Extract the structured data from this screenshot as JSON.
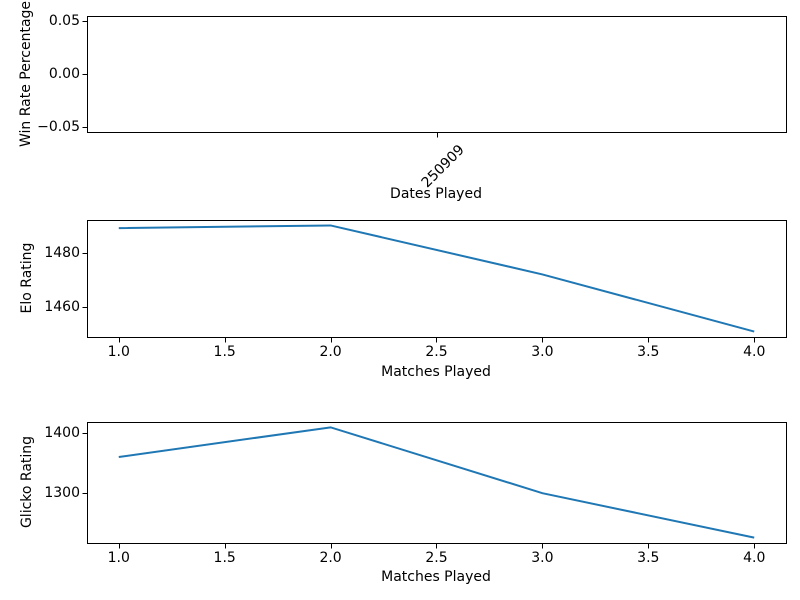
{
  "figure": {
    "background": "#ffffff",
    "axes_color": "#000000",
    "text_color": "#000000"
  },
  "chart_data": [
    {
      "type": "line",
      "title": "",
      "xlabel": "Dates Played",
      "ylabel": "Win Rate Percentage",
      "xlim": [
        -0.5,
        0.5
      ],
      "ylim": [
        -0.055,
        0.055
      ],
      "grid": false,
      "legend": "none",
      "x_ticks": [
        {
          "pos": 0,
          "label": "250909",
          "rotation": 45
        }
      ],
      "y_ticks": [
        {
          "pos": -0.05,
          "label": "−0.05"
        },
        {
          "pos": 0.0,
          "label": "0.00"
        },
        {
          "pos": 0.05,
          "label": "0.05"
        }
      ],
      "series": []
    },
    {
      "type": "line",
      "title": "",
      "xlabel": "Matches Played",
      "ylabel": "Elo Rating",
      "xlim": [
        0.85,
        4.15
      ],
      "ylim": [
        1449,
        1492
      ],
      "grid": false,
      "legend": "none",
      "x_ticks": [
        {
          "pos": 1.0,
          "label": "1.0"
        },
        {
          "pos": 1.5,
          "label": "1.5"
        },
        {
          "pos": 2.0,
          "label": "2.0"
        },
        {
          "pos": 2.5,
          "label": "2.5"
        },
        {
          "pos": 3.0,
          "label": "3.0"
        },
        {
          "pos": 3.5,
          "label": "3.5"
        },
        {
          "pos": 4.0,
          "label": "4.0"
        }
      ],
      "y_ticks": [
        {
          "pos": 1460,
          "label": "1460"
        },
        {
          "pos": 1480,
          "label": "1480"
        }
      ],
      "series": [
        {
          "name": "elo-rating",
          "color": "#1f77b4",
          "x": [
            1,
            2,
            3,
            4
          ],
          "y": [
            1489,
            1490,
            1472,
            1451
          ]
        }
      ]
    },
    {
      "type": "line",
      "title": "",
      "xlabel": "Matches Played",
      "ylabel": "Glicko Rating",
      "xlim": [
        0.85,
        4.15
      ],
      "ylim": [
        1215,
        1419
      ],
      "grid": false,
      "legend": "none",
      "x_ticks": [
        {
          "pos": 1.0,
          "label": "1.0"
        },
        {
          "pos": 1.5,
          "label": "1.5"
        },
        {
          "pos": 2.0,
          "label": "2.0"
        },
        {
          "pos": 2.5,
          "label": "2.5"
        },
        {
          "pos": 3.0,
          "label": "3.0"
        },
        {
          "pos": 3.5,
          "label": "3.5"
        },
        {
          "pos": 4.0,
          "label": "4.0"
        }
      ],
      "y_ticks": [
        {
          "pos": 1300,
          "label": "1300"
        },
        {
          "pos": 1400,
          "label": "1400"
        }
      ],
      "series": [
        {
          "name": "glicko-rating",
          "color": "#1f77b4",
          "x": [
            1,
            2,
            3,
            4
          ],
          "y": [
            1360,
            1410,
            1299,
            1224
          ]
        }
      ]
    }
  ]
}
